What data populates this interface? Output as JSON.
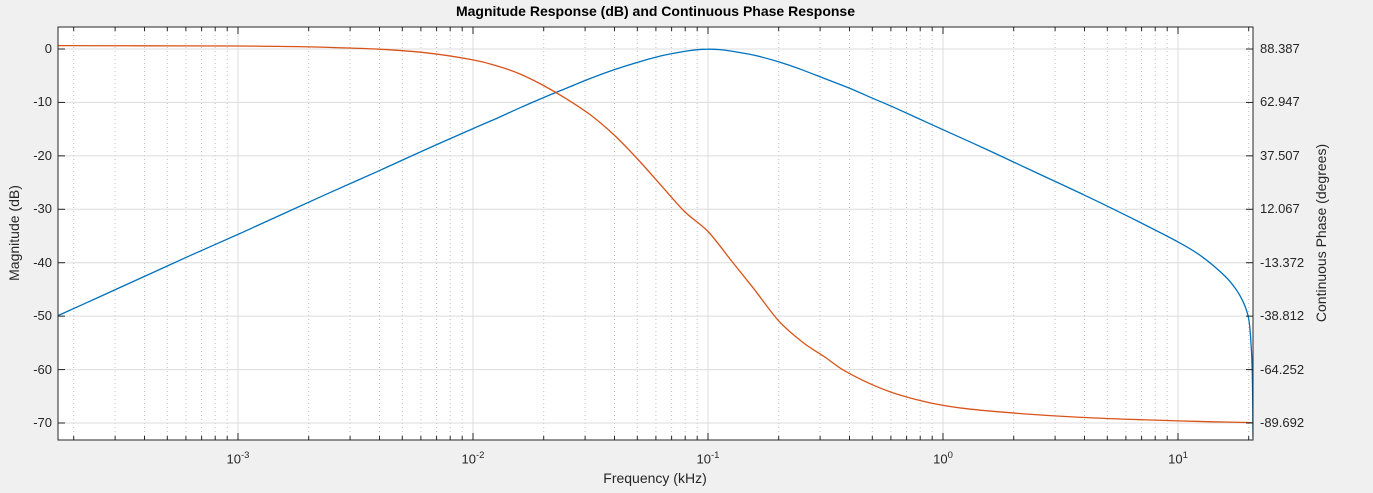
{
  "figure": {
    "background": "#f0f0f0",
    "plot_background": "#ffffff"
  },
  "colors": {
    "grid_major": "#dcdcdc",
    "grid_minor": "#bfbfbf",
    "axis_box": "#262626",
    "tick_text": "#262626",
    "magnitude_line": "#0072BD",
    "phase_line": "#D95319"
  },
  "chart_data": {
    "type": "line",
    "title": "Magnitude Response (dB) and Continuous Phase Response",
    "xlabel": "Frequency (kHz)",
    "x_scale": "log10",
    "x_range_log10": [
      -3.766,
      1.319
    ],
    "x_tick_exponents": [
      -3,
      -2,
      -1,
      0,
      1
    ],
    "grid": true,
    "legend": false,
    "axes": {
      "left": {
        "label": "Magnitude (dB)",
        "ticks": [
          0,
          -10,
          -20,
          -30,
          -40,
          -50,
          -60,
          -70
        ],
        "range": [
          4.1,
          -73.2
        ]
      },
      "right": {
        "label": "Continuous Phase (degrees)",
        "ticks": [
          88.387,
          62.947,
          37.507,
          12.067,
          -13.372,
          -38.812,
          -64.252,
          -89.692
        ],
        "range": [
          98.9,
          -97.8
        ]
      }
    },
    "series": [
      {
        "name": "Magnitude (dB)",
        "axis": "left",
        "color": "#0072BD",
        "x_log10": [
          -3.766,
          -3.6,
          -3.4,
          -3.2,
          -3.0,
          -2.8,
          -2.6,
          -2.4,
          -2.2,
          -2.0,
          -1.9,
          -1.8,
          -1.7,
          -1.6,
          -1.5,
          -1.4,
          -1.3,
          -1.2,
          -1.1,
          -1.05,
          -1.0,
          -0.95,
          -0.9,
          -0.8,
          -0.7,
          -0.6,
          -0.5,
          -0.4,
          -0.3,
          -0.2,
          -0.1,
          0.0,
          0.2,
          0.4,
          0.6,
          0.8,
          1.0,
          1.1,
          1.2,
          1.25,
          1.28,
          1.3,
          1.308,
          1.313,
          1.316,
          1.318,
          1.319
        ],
        "y": [
          -49.9,
          -46.6,
          -42.6,
          -38.6,
          -34.7,
          -30.7,
          -26.7,
          -22.8,
          -18.8,
          -14.9,
          -13.0,
          -11.0,
          -9.1,
          -7.3,
          -5.5,
          -3.9,
          -2.5,
          -1.3,
          -0.45,
          -0.15,
          -0.03,
          -0.12,
          -0.4,
          -1.2,
          -2.4,
          -3.9,
          -5.6,
          -7.3,
          -9.2,
          -11.1,
          -13.1,
          -15.1,
          -19.1,
          -23.2,
          -27.3,
          -31.6,
          -36.1,
          -38.8,
          -42.5,
          -45.2,
          -47.6,
          -50.3,
          -53.5,
          -57.0,
          -61.0,
          -66.0,
          -72.8
        ]
      },
      {
        "name": "Continuous Phase (degrees)",
        "axis": "right",
        "color": "#D95319",
        "x_log10": [
          -3.766,
          -3.4,
          -3.0,
          -2.8,
          -2.6,
          -2.4,
          -2.2,
          -2.0,
          -1.9,
          -1.8,
          -1.7,
          -1.6,
          -1.5,
          -1.4,
          -1.3,
          -1.2,
          -1.1,
          -1.0,
          -0.9,
          -0.8,
          -0.7,
          -0.6,
          -0.5,
          -0.425,
          -0.3,
          -0.18,
          -0.05,
          0.1,
          0.33,
          0.55,
          0.8,
          1.0,
          1.15,
          1.319
        ],
        "y": [
          90.0,
          89.9,
          89.8,
          89.6,
          89.1,
          88.3,
          86.6,
          83.2,
          80.4,
          76.5,
          71.0,
          64.5,
          57.0,
          47.5,
          36.0,
          23.5,
          11.0,
          1.5,
          -12.5,
          -26.5,
          -41.0,
          -51.0,
          -58.5,
          -64.4,
          -71.5,
          -76.5,
          -80.2,
          -82.9,
          -85.2,
          -86.8,
          -88.0,
          -88.7,
          -89.1,
          -89.5
        ]
      }
    ]
  }
}
